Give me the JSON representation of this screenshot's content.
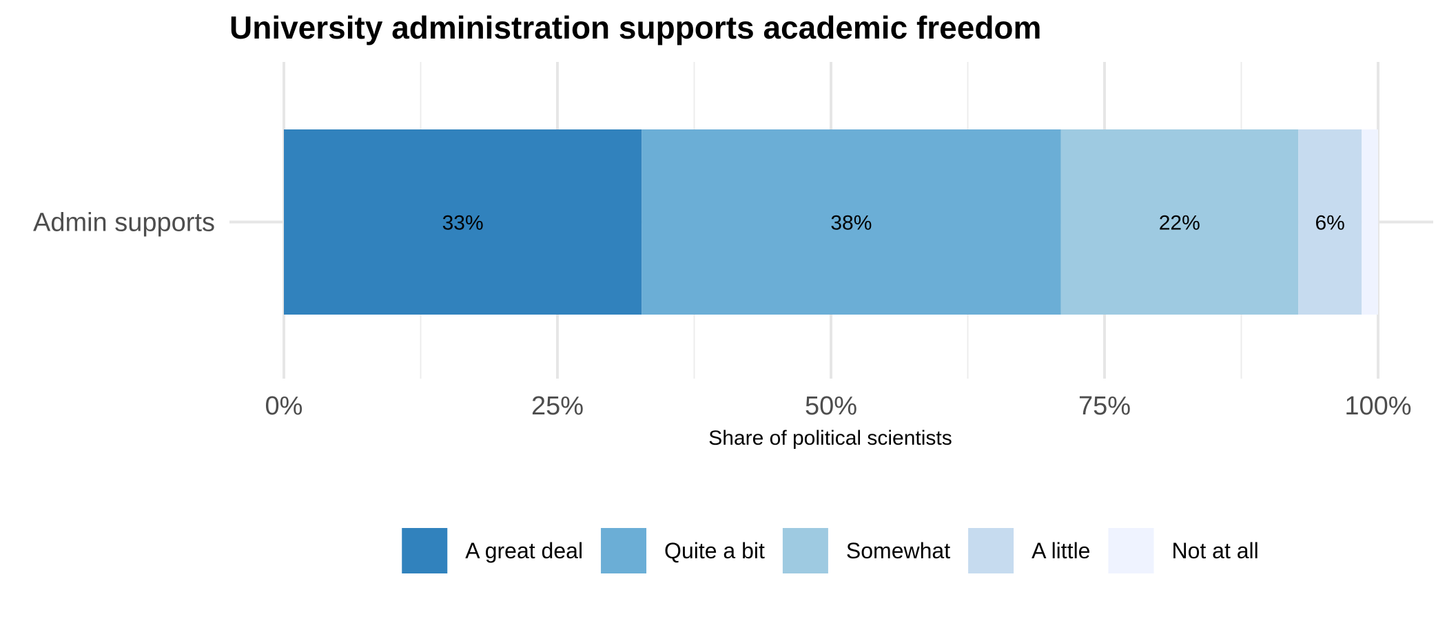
{
  "chart_data": {
    "type": "bar",
    "orientation": "horizontal",
    "stacked": true,
    "title": "University administration supports academic freedom",
    "xlabel": "Share of political scientists",
    "ylabel": "",
    "categories": [
      "Admin supports"
    ],
    "xlim": [
      0,
      100
    ],
    "x_ticks": [
      0,
      25,
      50,
      75,
      100
    ],
    "x_tick_labels": [
      "0%",
      "25%",
      "50%",
      "75%",
      "100%"
    ],
    "grid": true,
    "legend_position": "bottom",
    "series": [
      {
        "name": "A great deal",
        "values": [
          32.7
        ],
        "label": "33%",
        "color": "#3182bd"
      },
      {
        "name": "Quite a bit",
        "values": [
          38.3
        ],
        "label": "38%",
        "color": "#6baed6"
      },
      {
        "name": "Somewhat",
        "values": [
          21.7
        ],
        "label": "22%",
        "color": "#9ecae1"
      },
      {
        "name": "A little",
        "values": [
          5.8
        ],
        "label": "6%",
        "color": "#c6dbef"
      },
      {
        "name": "Not at all",
        "values": [
          1.5
        ],
        "label": "",
        "color": "#eff3ff"
      }
    ]
  }
}
